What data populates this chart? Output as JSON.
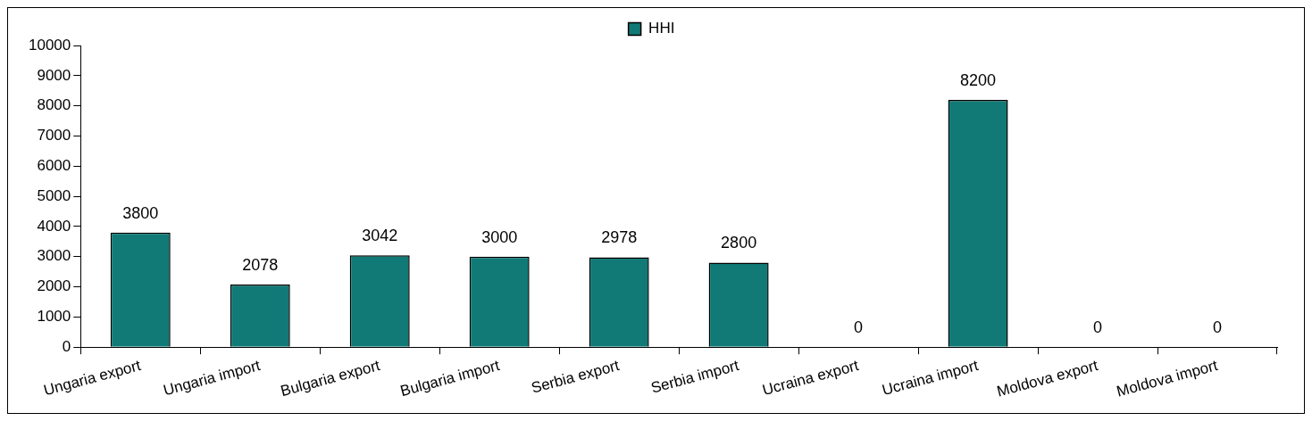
{
  "chart_data": {
    "type": "bar",
    "categories": [
      "Ungaria export",
      "Ungaria import",
      "Bulgaria export",
      "Bulgaria import",
      "Serbia export",
      "Serbia import",
      "Ucraina export",
      "Ucraina import",
      "Moldova export",
      "Moldova import"
    ],
    "series": [
      {
        "name": "HHI",
        "color": "#117a76",
        "values": [
          3800,
          2078,
          3042,
          3000,
          2978,
          2800,
          0,
          8200,
          0,
          0
        ]
      }
    ],
    "ylim": [
      0,
      10000
    ],
    "yticks": [
      0,
      1000,
      2000,
      3000,
      4000,
      5000,
      6000,
      7000,
      8000,
      9000,
      10000
    ],
    "grid": false,
    "legend": "top",
    "data_labels": true
  }
}
